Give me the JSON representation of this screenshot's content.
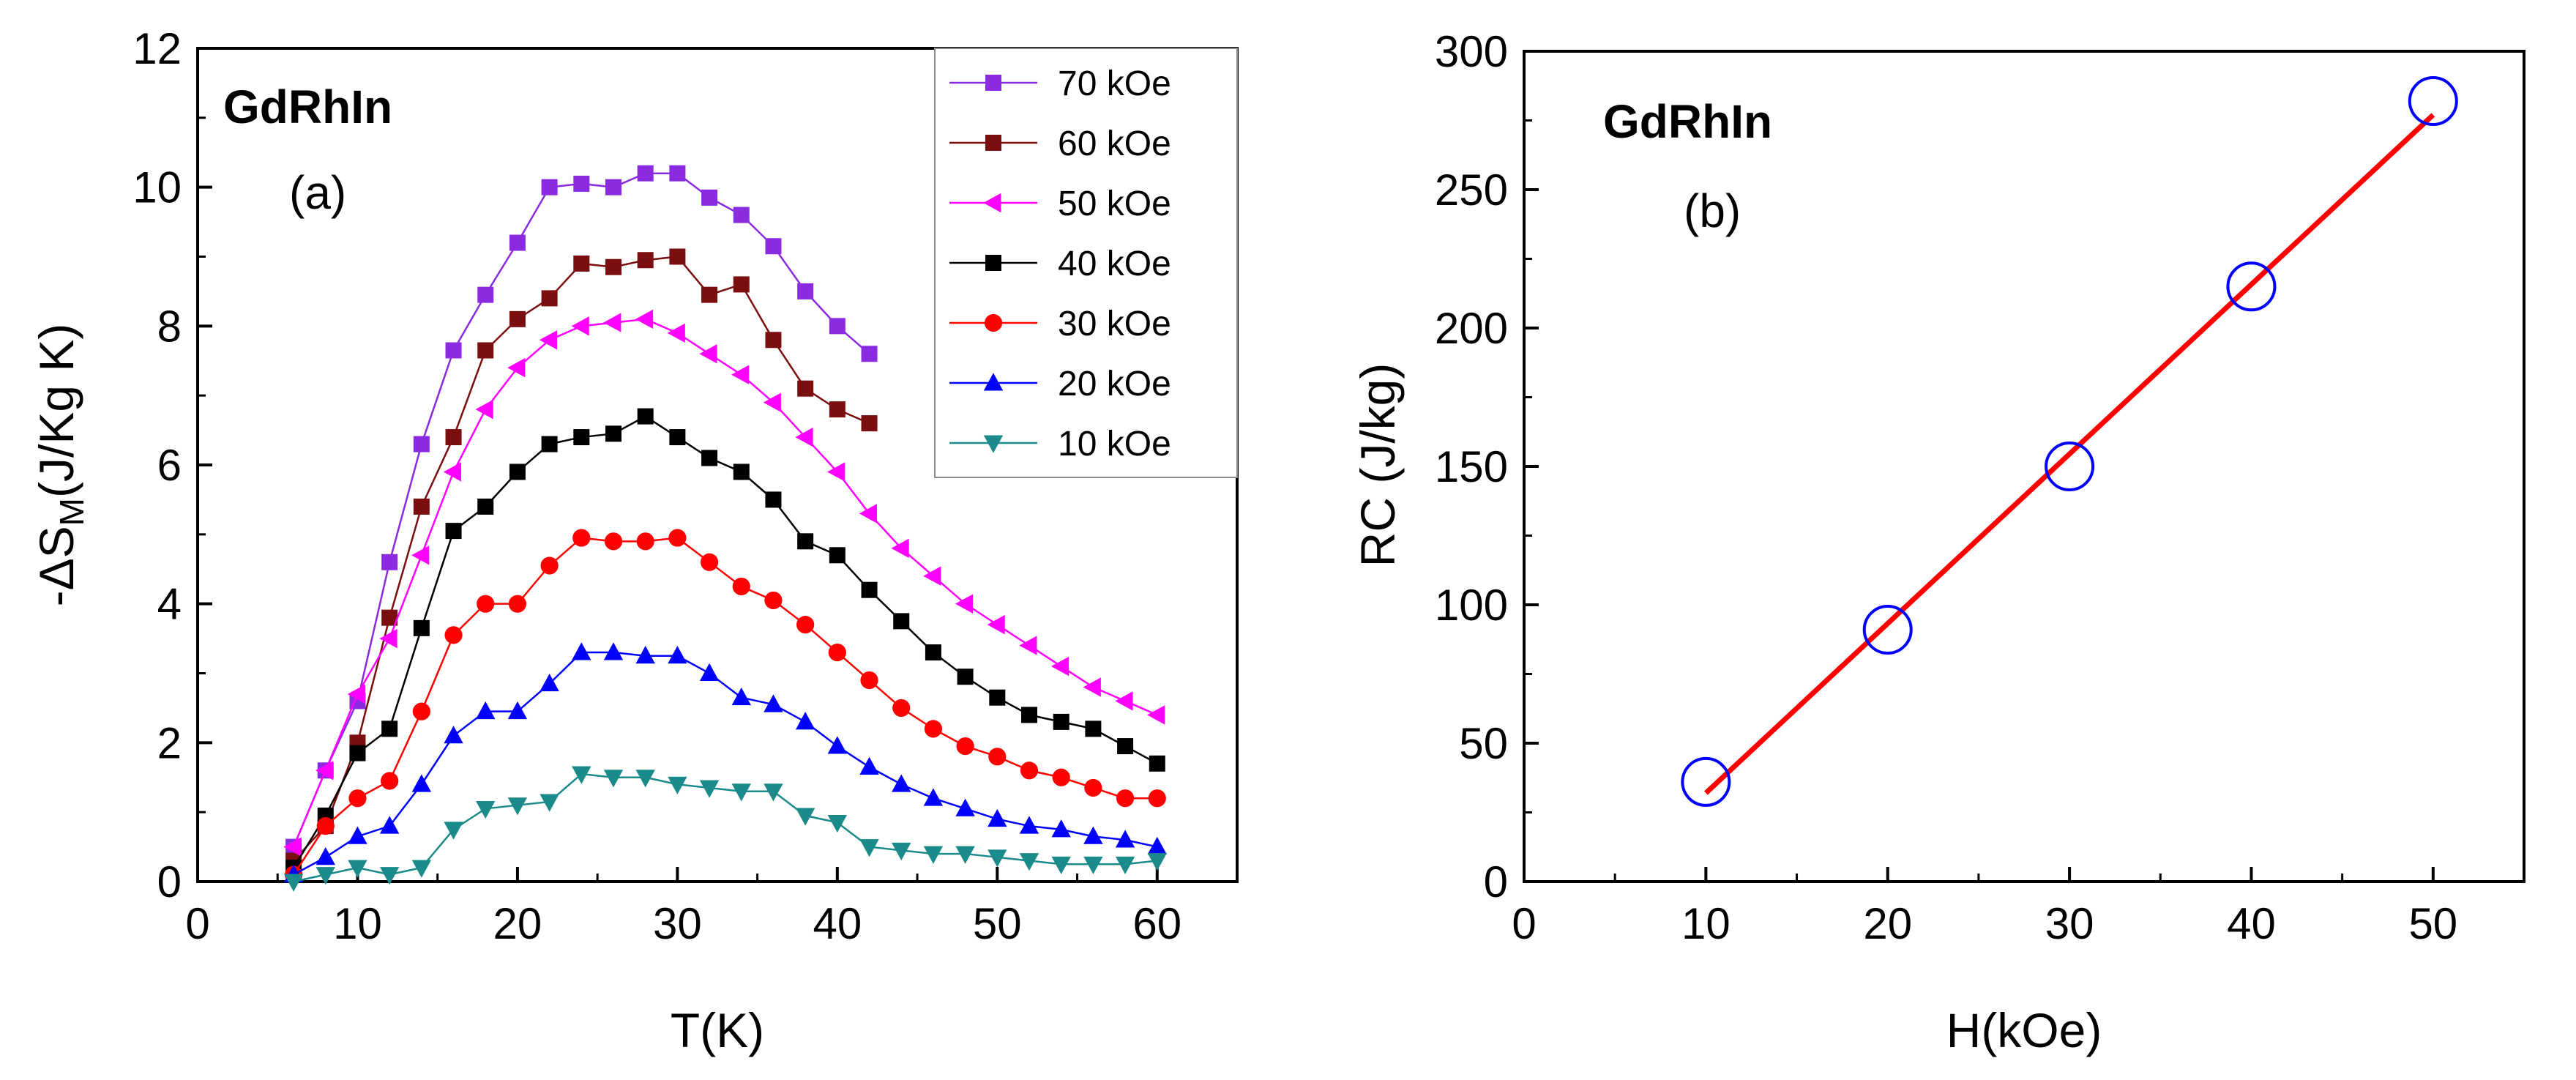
{
  "chart_data": [
    {
      "type": "line",
      "title": "GdRhIn",
      "panel_label": "(a)",
      "xlabel": "T(K)",
      "ylabel_prefix": "-ΔS",
      "ylabel_subscript": "M",
      "ylabel_suffix": "(J/Kg K)",
      "xlim": [
        0,
        65
      ],
      "ylim": [
        0,
        12
      ],
      "xticks": [
        0,
        10,
        20,
        30,
        40,
        50,
        60
      ],
      "yticks": [
        0,
        2,
        4,
        6,
        8,
        10,
        12
      ],
      "grid": false,
      "legend_position": "top-right",
      "series": [
        {
          "name": "70 kOe",
          "color": "#8a2be2",
          "marker": "square",
          "x": [
            6,
            8,
            10,
            12,
            14,
            16,
            18,
            20,
            22,
            24,
            26,
            28,
            30,
            32,
            34,
            36,
            38,
            40,
            42
          ],
          "y": [
            0.5,
            1.6,
            2.6,
            4.6,
            6.3,
            7.65,
            8.45,
            9.2,
            10.0,
            10.05,
            10.0,
            10.2,
            10.2,
            9.85,
            9.6,
            9.15,
            8.5,
            8.0,
            7.6
          ]
        },
        {
          "name": "60 kOe",
          "color": "#7b0e0e",
          "marker": "square",
          "x": [
            6,
            8,
            10,
            12,
            14,
            16,
            18,
            20,
            22,
            24,
            26,
            28,
            30,
            32,
            34,
            36,
            38,
            40,
            42
          ],
          "y": [
            0.3,
            0.8,
            2.0,
            3.8,
            5.4,
            6.4,
            7.65,
            8.1,
            8.4,
            8.9,
            8.85,
            8.95,
            9.0,
            8.45,
            8.6,
            7.8,
            7.1,
            6.8,
            6.6
          ]
        },
        {
          "name": "50 kOe",
          "color": "#ff00ff",
          "marker": "triangle-left",
          "x": [
            6,
            8,
            10,
            12,
            14,
            16,
            18,
            20,
            22,
            24,
            26,
            28,
            30,
            32,
            34,
            36,
            38,
            40,
            42,
            44,
            46,
            48,
            50,
            52,
            54,
            56,
            58,
            60
          ],
          "y": [
            0.5,
            1.6,
            2.7,
            3.5,
            4.7,
            5.9,
            6.8,
            7.4,
            7.8,
            8.0,
            8.05,
            8.1,
            7.9,
            7.6,
            7.3,
            6.9,
            6.4,
            5.9,
            5.3,
            4.8,
            4.4,
            4.0,
            3.7,
            3.4,
            3.1,
            2.8,
            2.6,
            2.4
          ]
        },
        {
          "name": "40 kOe",
          "color": "#000000",
          "marker": "square",
          "x": [
            6,
            8,
            10,
            12,
            14,
            16,
            18,
            20,
            22,
            24,
            26,
            28,
            30,
            32,
            34,
            36,
            38,
            40,
            42,
            44,
            46,
            48,
            50,
            52,
            54,
            56,
            58,
            60
          ],
          "y": [
            0.2,
            0.95,
            1.85,
            2.2,
            3.65,
            5.05,
            5.4,
            5.9,
            6.3,
            6.4,
            6.45,
            6.7,
            6.4,
            6.1,
            5.9,
            5.5,
            4.9,
            4.7,
            4.2,
            3.75,
            3.3,
            2.95,
            2.65,
            2.4,
            2.3,
            2.2,
            1.95,
            1.7
          ]
        },
        {
          "name": "30 kOe",
          "color": "#ff0000",
          "marker": "circle",
          "x": [
            6,
            8,
            10,
            12,
            14,
            16,
            18,
            20,
            22,
            24,
            26,
            28,
            30,
            32,
            34,
            36,
            38,
            40,
            42,
            44,
            46,
            48,
            50,
            52,
            54,
            56,
            58,
            60
          ],
          "y": [
            0.1,
            0.8,
            1.2,
            1.45,
            2.45,
            3.55,
            4.0,
            4.0,
            4.55,
            4.95,
            4.9,
            4.9,
            4.95,
            4.6,
            4.25,
            4.05,
            3.7,
            3.3,
            2.9,
            2.5,
            2.2,
            1.95,
            1.8,
            1.6,
            1.5,
            1.35,
            1.2,
            1.2
          ]
        },
        {
          "name": "20 kOe",
          "color": "#0000ff",
          "marker": "triangle-up",
          "x": [
            6,
            8,
            10,
            12,
            14,
            16,
            18,
            20,
            22,
            24,
            26,
            28,
            30,
            32,
            34,
            36,
            38,
            40,
            42,
            44,
            46,
            48,
            50,
            52,
            54,
            56,
            58,
            60
          ],
          "y": [
            0.1,
            0.35,
            0.65,
            0.8,
            1.4,
            2.1,
            2.45,
            2.45,
            2.85,
            3.3,
            3.3,
            3.25,
            3.25,
            3.0,
            2.65,
            2.55,
            2.3,
            1.95,
            1.65,
            1.4,
            1.2,
            1.05,
            0.9,
            0.8,
            0.75,
            0.65,
            0.6,
            0.5
          ]
        },
        {
          "name": "10 kOe",
          "color": "#1a8a8a",
          "marker": "triangle-down",
          "x": [
            6,
            8,
            10,
            12,
            14,
            16,
            18,
            20,
            22,
            24,
            26,
            28,
            30,
            32,
            34,
            36,
            38,
            40,
            42,
            44,
            46,
            48,
            50,
            52,
            54,
            56,
            58,
            60
          ],
          "y": [
            0.0,
            0.1,
            0.2,
            0.1,
            0.2,
            0.75,
            1.05,
            1.1,
            1.15,
            1.55,
            1.5,
            1.5,
            1.4,
            1.35,
            1.3,
            1.3,
            0.95,
            0.85,
            0.5,
            0.45,
            0.4,
            0.4,
            0.35,
            0.3,
            0.25,
            0.25,
            0.25,
            0.3
          ]
        }
      ]
    },
    {
      "type": "scatter",
      "title": "GdRhIn",
      "panel_label": "(b)",
      "xlabel": "H(kOe)",
      "ylabel": "RC (J/kg)",
      "xlim": [
        0,
        55
      ],
      "ylim": [
        0,
        300
      ],
      "xticks": [
        0,
        10,
        20,
        30,
        40,
        50
      ],
      "yticks": [
        0,
        50,
        100,
        150,
        200,
        250,
        300
      ],
      "grid": false,
      "points": {
        "marker": "open-circle",
        "color": "#0000ff",
        "x": [
          10,
          20,
          30,
          40,
          50
        ],
        "y": [
          36,
          91,
          150,
          215,
          282
        ]
      },
      "fit_line": {
        "color": "#ff0000",
        "x": [
          10,
          50
        ],
        "y": [
          32,
          277
        ]
      }
    }
  ]
}
